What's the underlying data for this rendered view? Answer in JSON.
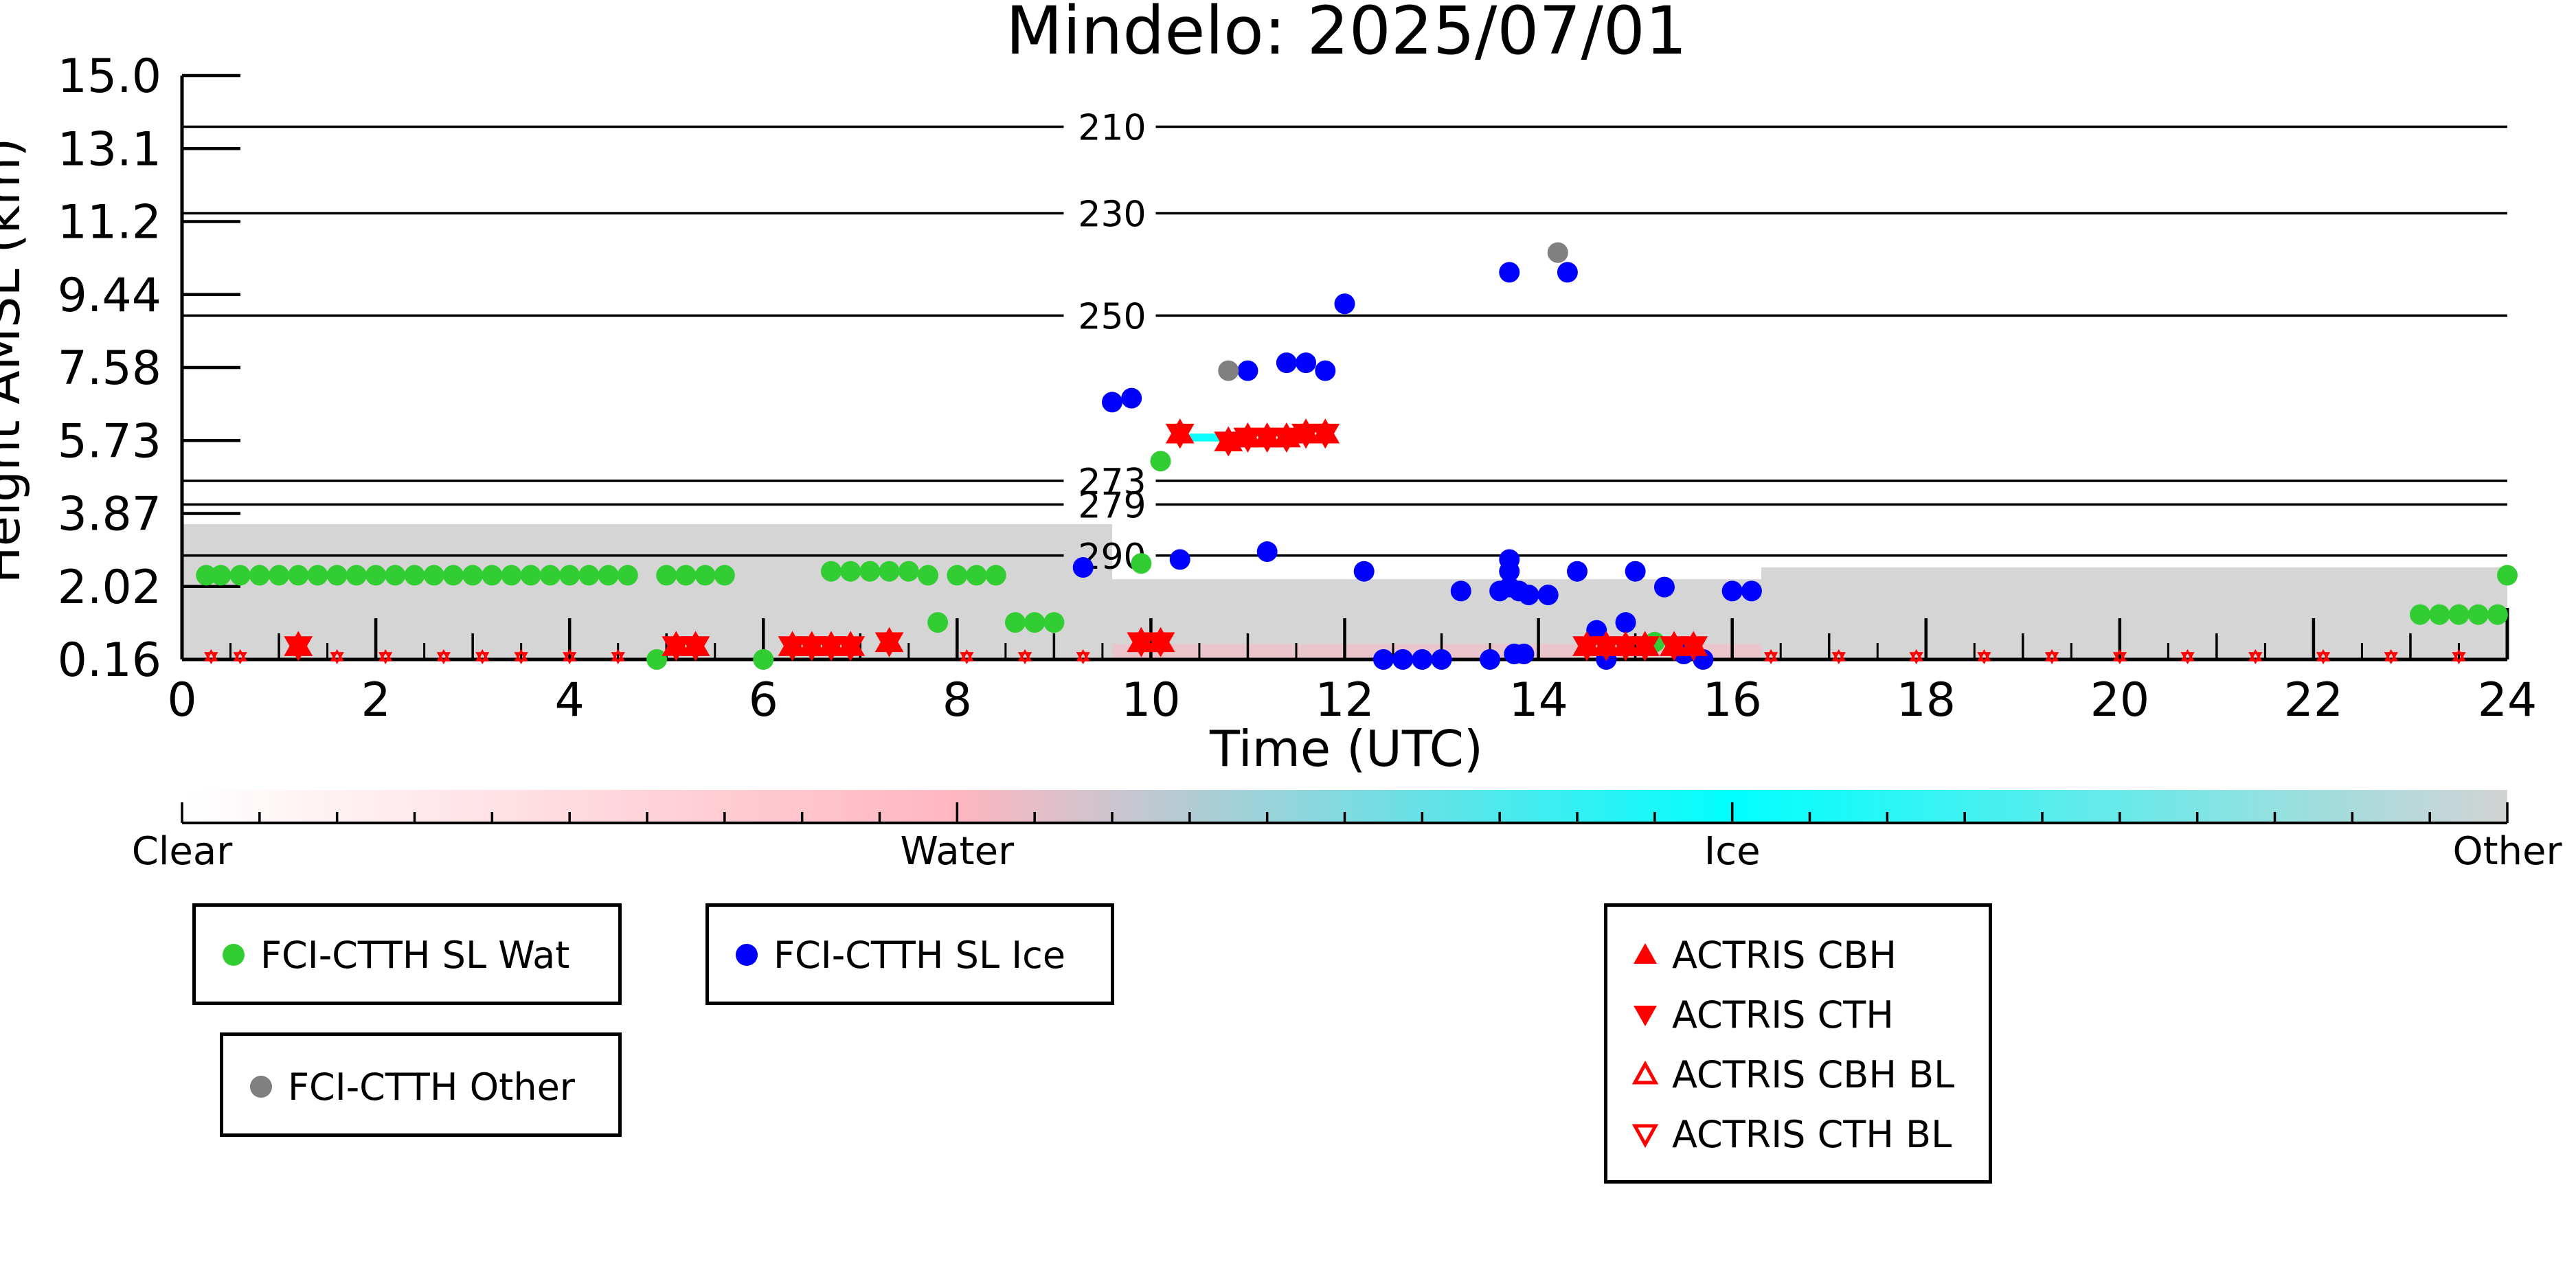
{
  "chart_data": {
    "type": "scatter",
    "title": "Mindelo: 2025/07/01",
    "xlabel": "Time (UTC)",
    "ylabel": "Height AMSL (km)",
    "xlim": [
      0,
      24
    ],
    "ylim": [
      0.16,
      15.0
    ],
    "x_ticks": [
      "0",
      "2",
      "4",
      "6",
      "8",
      "10",
      "12",
      "14",
      "16",
      "18",
      "20",
      "22",
      "24"
    ],
    "y_ticks": [
      "0.16",
      "2.02",
      "3.87",
      "5.73",
      "7.58",
      "9.44",
      "11.2",
      "13.1",
      "15.0"
    ],
    "colorbar": {
      "labels": [
        "Clear",
        "Water",
        "Ice",
        "Other"
      ],
      "colors": [
        "#ffffff",
        "#ffb6c1",
        "#00ffff",
        "#d3d3d3"
      ]
    },
    "contours": [
      {
        "label": "210",
        "height": 13.7
      },
      {
        "label": "230",
        "height": 11.5
      },
      {
        "label": "250",
        "height": 8.9
      },
      {
        "label": "273",
        "height": 4.7
      },
      {
        "label": "279",
        "height": 4.1
      },
      {
        "label": "290",
        "height": 2.8
      }
    ],
    "series": [
      {
        "name": "FCI-CTTH SL Wat",
        "color": "#32cd32",
        "marker": "circle",
        "points": [
          [
            0.25,
            2.3
          ],
          [
            0.4,
            2.3
          ],
          [
            0.6,
            2.3
          ],
          [
            0.8,
            2.3
          ],
          [
            1.0,
            2.3
          ],
          [
            1.2,
            2.3
          ],
          [
            1.4,
            2.3
          ],
          [
            1.6,
            2.3
          ],
          [
            1.8,
            2.3
          ],
          [
            2.0,
            2.3
          ],
          [
            2.2,
            2.3
          ],
          [
            2.4,
            2.3
          ],
          [
            2.6,
            2.3
          ],
          [
            2.8,
            2.3
          ],
          [
            3.0,
            2.3
          ],
          [
            3.2,
            2.3
          ],
          [
            3.4,
            2.3
          ],
          [
            3.6,
            2.3
          ],
          [
            3.8,
            2.3
          ],
          [
            4.0,
            2.3
          ],
          [
            4.2,
            2.3
          ],
          [
            4.4,
            2.3
          ],
          [
            4.6,
            2.3
          ],
          [
            5.0,
            2.3
          ],
          [
            5.2,
            2.3
          ],
          [
            5.4,
            2.3
          ],
          [
            5.6,
            2.3
          ],
          [
            6.7,
            2.4
          ],
          [
            6.9,
            2.4
          ],
          [
            7.1,
            2.4
          ],
          [
            7.3,
            2.4
          ],
          [
            7.5,
            2.4
          ],
          [
            7.7,
            2.3
          ],
          [
            8.0,
            2.3
          ],
          [
            8.2,
            2.3
          ],
          [
            8.4,
            2.3
          ],
          [
            7.8,
            1.1
          ],
          [
            8.6,
            1.1
          ],
          [
            8.8,
            1.1
          ],
          [
            9.0,
            1.1
          ],
          [
            10.1,
            5.2
          ],
          [
            4.9,
            0.16
          ],
          [
            6.0,
            0.16
          ],
          [
            9.9,
            2.6
          ],
          [
            15.2,
            0.6
          ],
          [
            23.1,
            1.3
          ],
          [
            23.3,
            1.3
          ],
          [
            23.5,
            1.3
          ],
          [
            23.7,
            1.3
          ],
          [
            23.9,
            1.3
          ],
          [
            24.0,
            2.3
          ]
        ]
      },
      {
        "name": "FCI-CTTH SL Ice",
        "color": "#0000ff",
        "marker": "circle",
        "points": [
          [
            9.6,
            6.7
          ],
          [
            9.8,
            6.8
          ],
          [
            10.3,
            2.7
          ],
          [
            11.0,
            7.5
          ],
          [
            11.2,
            2.9
          ],
          [
            11.4,
            7.7
          ],
          [
            11.6,
            7.7
          ],
          [
            11.8,
            7.5
          ],
          [
            12.0,
            9.2
          ],
          [
            12.2,
            2.4
          ],
          [
            12.4,
            0.16
          ],
          [
            12.6,
            0.16
          ],
          [
            12.8,
            0.16
          ],
          [
            13.0,
            0.16
          ],
          [
            13.2,
            1.9
          ],
          [
            13.5,
            0.16
          ],
          [
            13.6,
            1.9
          ],
          [
            13.7,
            2.0
          ],
          [
            13.7,
            2.4
          ],
          [
            13.7,
            2.7
          ],
          [
            13.75,
            0.3
          ],
          [
            13.8,
            1.9
          ],
          [
            13.85,
            0.3
          ],
          [
            13.9,
            1.8
          ],
          [
            14.1,
            1.8
          ],
          [
            13.7,
            10.0
          ],
          [
            14.3,
            10.0
          ],
          [
            14.4,
            2.4
          ],
          [
            14.6,
            0.9
          ],
          [
            14.9,
            1.1
          ],
          [
            15.0,
            2.4
          ],
          [
            15.3,
            2.0
          ],
          [
            15.5,
            0.3
          ],
          [
            15.7,
            0.16
          ],
          [
            16.0,
            1.9
          ],
          [
            16.2,
            1.9
          ],
          [
            9.3,
            2.5
          ],
          [
            14.7,
            0.16
          ]
        ]
      },
      {
        "name": "FCI-CTTH Other",
        "color": "#808080",
        "marker": "circle",
        "points": [
          [
            10.8,
            7.5
          ],
          [
            14.2,
            10.5
          ]
        ]
      },
      {
        "name": "ACTRIS CBH",
        "color": "#ff0000",
        "marker": "triangle-up",
        "points": [
          [
            1.2,
            0.5
          ],
          [
            5.1,
            0.5
          ],
          [
            5.3,
            0.5
          ],
          [
            6.3,
            0.5
          ],
          [
            6.5,
            0.5
          ],
          [
            6.7,
            0.5
          ],
          [
            6.9,
            0.5
          ],
          [
            7.3,
            0.6
          ],
          [
            9.9,
            0.6
          ],
          [
            10.1,
            0.6
          ],
          [
            10.3,
            5.9
          ],
          [
            10.8,
            5.7
          ],
          [
            11.0,
            5.8
          ],
          [
            11.2,
            5.8
          ],
          [
            11.4,
            5.8
          ],
          [
            11.6,
            5.9
          ],
          [
            11.8,
            5.9
          ],
          [
            14.5,
            0.5
          ],
          [
            14.7,
            0.5
          ],
          [
            14.9,
            0.5
          ],
          [
            15.1,
            0.5
          ],
          [
            15.4,
            0.5
          ],
          [
            15.6,
            0.5
          ]
        ]
      },
      {
        "name": "ACTRIS CTH",
        "color": "#ff0000",
        "marker": "triangle-down",
        "points": [
          [
            1.2,
            0.5
          ],
          [
            5.1,
            0.5
          ],
          [
            5.3,
            0.5
          ],
          [
            6.3,
            0.5
          ],
          [
            6.5,
            0.5
          ],
          [
            6.7,
            0.5
          ],
          [
            6.9,
            0.5
          ],
          [
            7.3,
            0.6
          ],
          [
            9.9,
            0.6
          ],
          [
            10.1,
            0.6
          ],
          [
            10.3,
            5.9
          ],
          [
            10.8,
            5.7
          ],
          [
            11.0,
            5.8
          ],
          [
            11.2,
            5.8
          ],
          [
            11.4,
            5.8
          ],
          [
            11.6,
            5.9
          ],
          [
            11.8,
            5.9
          ],
          [
            14.5,
            0.5
          ],
          [
            14.7,
            0.5
          ],
          [
            14.9,
            0.5
          ],
          [
            15.1,
            0.5
          ],
          [
            15.4,
            0.5
          ],
          [
            15.6,
            0.5
          ]
        ]
      },
      {
        "name": "ACTRIS CBH BL",
        "color": "#ff0000",
        "marker": "triangle-up-open",
        "points": [
          [
            0.3,
            0.16
          ],
          [
            0.6,
            0.16
          ],
          [
            1.6,
            0.16
          ],
          [
            2.1,
            0.16
          ],
          [
            2.7,
            0.16
          ],
          [
            3.1,
            0.16
          ],
          [
            3.5,
            0.16
          ],
          [
            4.0,
            0.16
          ],
          [
            4.5,
            0.16
          ],
          [
            8.1,
            0.16
          ],
          [
            8.7,
            0.16
          ],
          [
            9.3,
            0.16
          ],
          [
            16.4,
            0.16
          ],
          [
            17.1,
            0.16
          ],
          [
            17.9,
            0.16
          ],
          [
            18.6,
            0.16
          ],
          [
            19.3,
            0.16
          ],
          [
            20.0,
            0.16
          ],
          [
            20.7,
            0.16
          ],
          [
            21.4,
            0.16
          ],
          [
            22.1,
            0.16
          ],
          [
            22.8,
            0.16
          ],
          [
            23.5,
            0.16
          ]
        ]
      },
      {
        "name": "ACTRIS CTH BL",
        "color": "#ff0000",
        "marker": "triangle-down-open",
        "points": [
          [
            0.3,
            0.16
          ],
          [
            0.6,
            0.16
          ],
          [
            1.6,
            0.16
          ],
          [
            2.1,
            0.16
          ],
          [
            2.7,
            0.16
          ],
          [
            3.1,
            0.16
          ],
          [
            3.5,
            0.16
          ],
          [
            4.0,
            0.16
          ],
          [
            4.5,
            0.16
          ],
          [
            8.1,
            0.16
          ],
          [
            8.7,
            0.16
          ],
          [
            9.3,
            0.16
          ],
          [
            16.4,
            0.16
          ],
          [
            17.1,
            0.16
          ],
          [
            17.9,
            0.16
          ],
          [
            18.6,
            0.16
          ],
          [
            19.3,
            0.16
          ],
          [
            20.0,
            0.16
          ],
          [
            20.7,
            0.16
          ],
          [
            21.4,
            0.16
          ],
          [
            22.1,
            0.16
          ],
          [
            22.8,
            0.16
          ],
          [
            23.5,
            0.16
          ]
        ]
      }
    ],
    "cloud_background": [
      {
        "x_range": [
          0,
          9.6
        ],
        "height_range": [
          0.16,
          3.6
        ],
        "class": "Other"
      },
      {
        "x_range": [
          9.6,
          16.3
        ],
        "height_range": [
          0.16,
          2.2
        ],
        "class": "Other"
      },
      {
        "x_range": [
          16.3,
          24
        ],
        "height_range": [
          0.16,
          2.5
        ],
        "class": "Other"
      },
      {
        "x_range": [
          10.4,
          10.9
        ],
        "height_range": [
          5.7,
          5.9
        ],
        "class": "Ice"
      }
    ]
  },
  "legends": {
    "wat": "FCI-CTTH SL Wat",
    "ice": "FCI-CTTH SL Ice",
    "other": "FCI-CTTH Other",
    "actris_cbh": "ACTRIS CBH",
    "actris_cth": "ACTRIS CTH",
    "actris_cbh_bl": "ACTRIS CBH BL",
    "actris_cth_bl": "ACTRIS CTH BL"
  }
}
